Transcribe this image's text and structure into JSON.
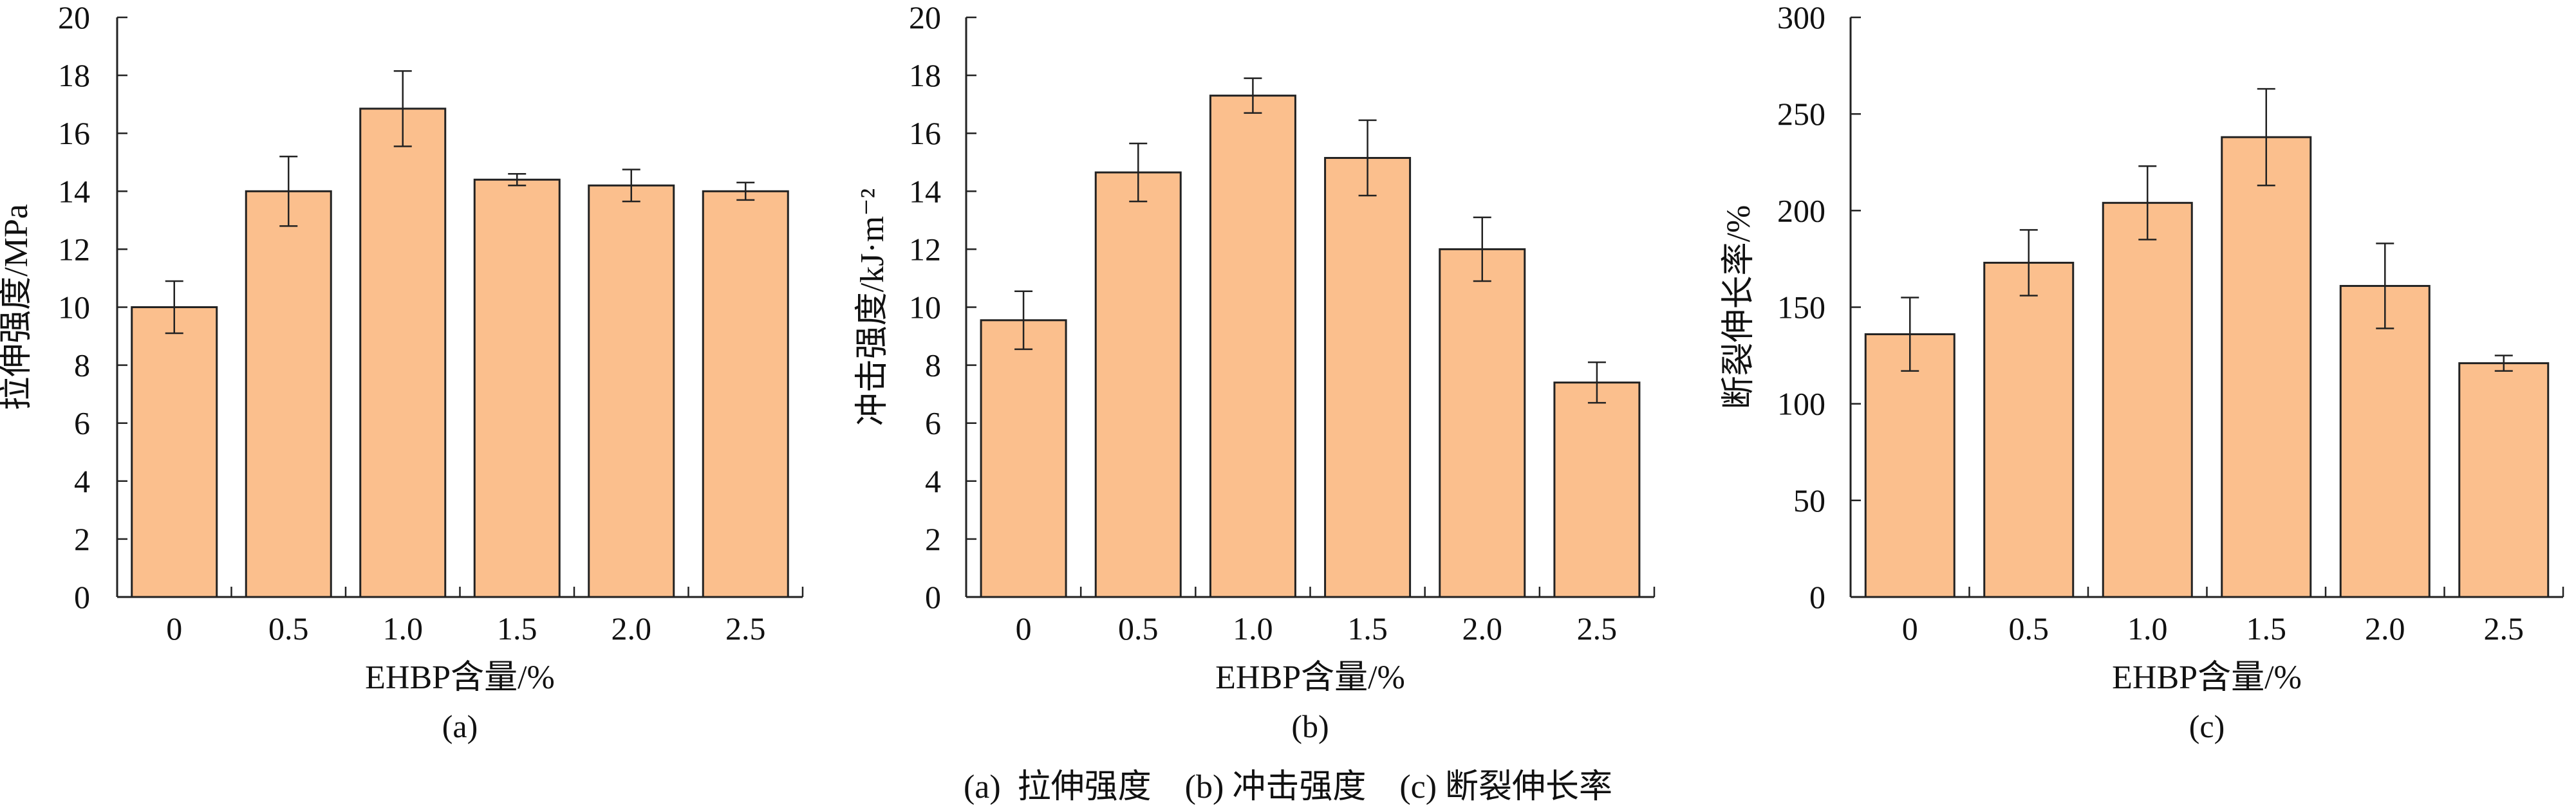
{
  "chart_data": [
    {
      "type": "bar",
      "panel_label": "(a)",
      "categories": [
        "0",
        "0.5",
        "1.0",
        "1.5",
        "2.0",
        "2.5"
      ],
      "values": [
        10.0,
        14.0,
        16.85,
        14.4,
        14.2,
        14.0
      ],
      "errors": [
        0.9,
        1.2,
        1.3,
        0.2,
        0.55,
        0.3
      ],
      "xlabel": "EHBP含量/%",
      "ylabel": "拉伸强度/MPa",
      "ylim": [
        0,
        20
      ],
      "yticks": [
        "0",
        "2",
        "4",
        "6",
        "8",
        "10",
        "12",
        "14",
        "16",
        "18",
        "20"
      ],
      "grid": false,
      "bar_color": "#fbbf8d"
    },
    {
      "type": "bar",
      "panel_label": "(b)",
      "categories": [
        "0",
        "0.5",
        "1.0",
        "1.5",
        "2.0",
        "2.5"
      ],
      "values": [
        9.55,
        14.65,
        17.3,
        15.15,
        12.0,
        7.4
      ],
      "errors": [
        1.0,
        1.0,
        0.6,
        1.3,
        1.1,
        0.7
      ],
      "xlabel": "EHBP含量/%",
      "ylabel": "冲击强度/kJ·m⁻²",
      "ylim": [
        0,
        20
      ],
      "yticks": [
        "0",
        "2",
        "4",
        "6",
        "8",
        "10",
        "12",
        "14",
        "16",
        "18",
        "20"
      ],
      "grid": false,
      "bar_color": "#fbbf8d"
    },
    {
      "type": "bar",
      "panel_label": "(c)",
      "categories": [
        "0",
        "0.5",
        "1.0",
        "1.5",
        "2.0",
        "2.5"
      ],
      "values": [
        136,
        173,
        204,
        238,
        161,
        121
      ],
      "errors": [
        19,
        17,
        19,
        25,
        22,
        4
      ],
      "xlabel": "EHBP含量/%",
      "ylabel": "断裂伸长率/%",
      "ylim": [
        0,
        300
      ],
      "yticks": [
        "0",
        "50",
        "100",
        "150",
        "200",
        "250",
        "300"
      ],
      "grid": false,
      "bar_color": "#fbbf8d"
    }
  ],
  "caption": "(a)  拉伸强度    (b) 冲击强度    (c) 断裂伸长率"
}
